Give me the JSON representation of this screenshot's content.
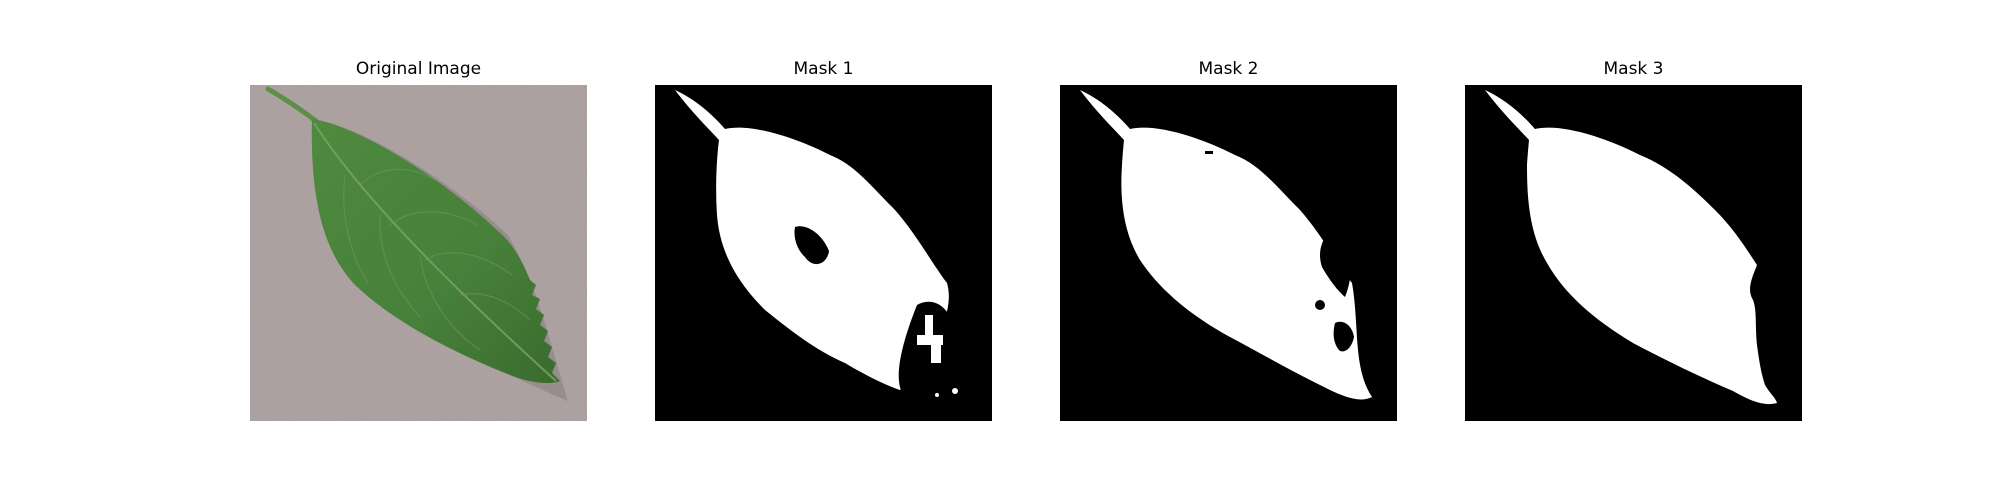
{
  "panels": [
    {
      "title": "Original Image"
    },
    {
      "title": "Mask 1"
    },
    {
      "title": "Mask 2"
    },
    {
      "title": "Mask 3"
    }
  ],
  "colors": {
    "background": "#ffffff",
    "mask_background": "#000000",
    "mask_foreground": "#ffffff",
    "surface": "#b3a8a7",
    "leaf": "#4a7f3b",
    "leaf_dark": "#3a6a2c",
    "leaf_vein": "#7ea36c"
  }
}
